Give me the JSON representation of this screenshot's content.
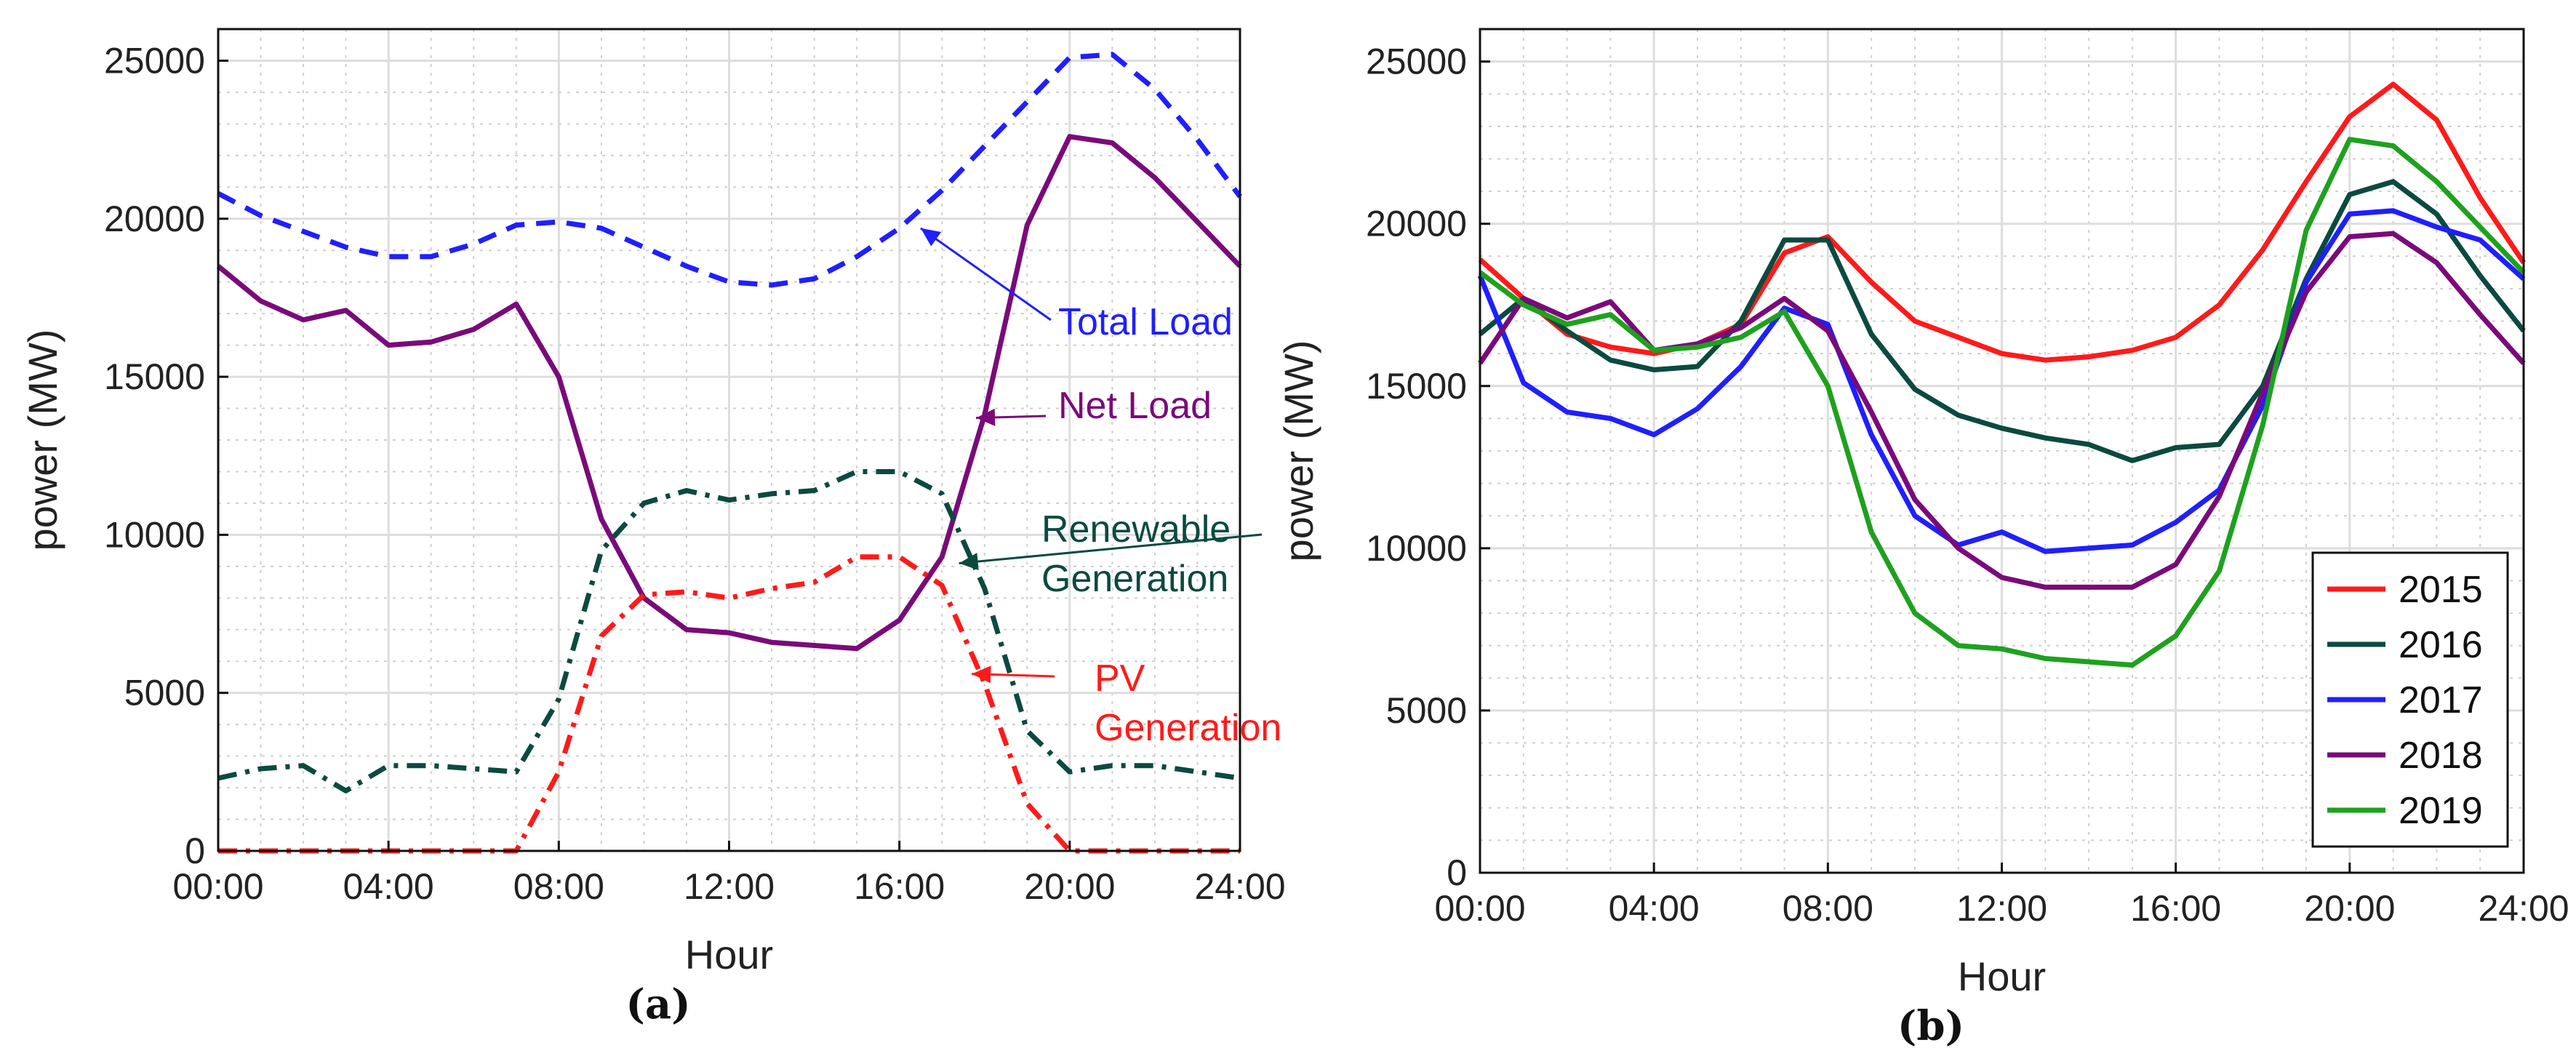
{
  "chart_data": [
    {
      "panel": "(a)",
      "type": "line",
      "xlabel": "Hour",
      "ylabel": "power (MW)",
      "xticks": [
        "00:00",
        "04:00",
        "08:00",
        "12:00",
        "16:00",
        "20:00",
        "24:00"
      ],
      "xlim": [
        0,
        24
      ],
      "ylim": [
        0,
        26000
      ],
      "yticks": [
        0,
        5000,
        10000,
        15000,
        20000,
        25000
      ],
      "grid": true,
      "x": [
        0,
        1,
        2,
        3,
        4,
        5,
        6,
        7,
        8,
        9,
        10,
        11,
        12,
        13,
        14,
        15,
        16,
        17,
        18,
        19,
        20,
        21,
        22,
        23,
        24
      ],
      "series": [
        {
          "name": "Total Load",
          "color": "#1f1fff",
          "style": "dashed",
          "values": [
            20800,
            20100,
            19600,
            19100,
            18800,
            18800,
            19200,
            19800,
            19900,
            19700,
            19100,
            18500,
            18000,
            17900,
            18100,
            18800,
            19700,
            20900,
            22300,
            23700,
            25100,
            25200,
            24100,
            22500,
            20700
          ]
        },
        {
          "name": "Net Load",
          "color": "#7a0a7a",
          "style": "solid",
          "values": [
            18500,
            17400,
            16800,
            17100,
            16000,
            16100,
            16500,
            17300,
            15000,
            10500,
            8000,
            7000,
            6900,
            6600,
            6500,
            6400,
            7300,
            9300,
            13800,
            19800,
            22600,
            22400,
            21300,
            19900,
            18500
          ]
        },
        {
          "name": "Renewable Generation",
          "color": "#0b4a3f",
          "style": "dashdot",
          "values": [
            2300,
            2600,
            2700,
            1900,
            2700,
            2700,
            2600,
            2500,
            4800,
            9500,
            11000,
            11400,
            11100,
            11300,
            11400,
            12000,
            12000,
            11300,
            8300,
            3800,
            2500,
            2700,
            2700,
            2500,
            2300
          ]
        },
        {
          "name": "PV Generation",
          "color": "#ff1a1a",
          "style": "dashdot",
          "values": [
            0,
            0,
            0,
            0,
            0,
            0,
            0,
            0,
            2500,
            6800,
            8100,
            8200,
            8000,
            8300,
            8500,
            9300,
            9300,
            8400,
            5300,
            1500,
            0,
            0,
            0,
            0,
            0
          ]
        }
      ],
      "annotations": [
        {
          "lines": [
            "Total Load"
          ],
          "color": "#1f1fff",
          "target_x": 16.5,
          "target_y": 19700
        },
        {
          "lines": [
            "Net Load"
          ],
          "color": "#7a0a7a",
          "target_x": 17.8,
          "target_y": 13700
        },
        {
          "lines": [
            "Renewable",
            "Generation"
          ],
          "color": "#0b4a3f",
          "target_x": 17.4,
          "target_y": 9100
        },
        {
          "lines": [
            "PV",
            "Generation"
          ],
          "color": "#ff1a1a",
          "target_x": 17.7,
          "target_y": 5600
        }
      ]
    },
    {
      "panel": "(b)",
      "type": "line",
      "xlabel": "Hour",
      "ylabel": "power (MW)",
      "xticks": [
        "00:00",
        "04:00",
        "08:00",
        "12:00",
        "16:00",
        "20:00",
        "24:00"
      ],
      "xlim": [
        0,
        24
      ],
      "ylim": [
        0,
        26000
      ],
      "yticks": [
        0,
        5000,
        10000,
        15000,
        20000,
        25000
      ],
      "grid": true,
      "legend": "bottom-right",
      "x": [
        0,
        1,
        2,
        3,
        4,
        5,
        6,
        7,
        8,
        9,
        10,
        11,
        12,
        13,
        14,
        15,
        16,
        17,
        18,
        19,
        20,
        21,
        22,
        23,
        24
      ],
      "series": [
        {
          "name": "2015",
          "color": "#ff1a1a",
          "values": [
            18900,
            17700,
            16600,
            16200,
            16000,
            16300,
            16900,
            19100,
            19600,
            18200,
            17000,
            16500,
            16000,
            15800,
            15900,
            16100,
            16500,
            17500,
            19200,
            21300,
            23300,
            24300,
            23200,
            20800,
            18800
          ]
        },
        {
          "name": "2016",
          "color": "#0b4a3f",
          "values": [
            16600,
            17700,
            16700,
            15800,
            15500,
            15600,
            17000,
            19500,
            19500,
            16600,
            14900,
            14100,
            13700,
            13400,
            13200,
            12700,
            13100,
            13200,
            15000,
            18300,
            20900,
            21300,
            20300,
            18400,
            16700
          ]
        },
        {
          "name": "2017",
          "color": "#1f1fff",
          "values": [
            18400,
            15100,
            14200,
            14000,
            13500,
            14300,
            15600,
            17400,
            16900,
            13500,
            11000,
            10100,
            10500,
            9900,
            10000,
            10100,
            10800,
            11800,
            14400,
            18200,
            20300,
            20400,
            19900,
            19500,
            18300
          ]
        },
        {
          "name": "2018",
          "color": "#7a0a7a",
          "values": [
            15700,
            17700,
            17100,
            17600,
            16100,
            16300,
            16800,
            17700,
            16700,
            14200,
            11500,
            10000,
            9100,
            8800,
            8800,
            8800,
            9500,
            11600,
            14800,
            17900,
            19600,
            19700,
            18800,
            17200,
            15700
          ]
        },
        {
          "name": "2019",
          "color": "#1ea11e",
          "values": [
            18500,
            17500,
            16900,
            17200,
            16100,
            16200,
            16500,
            17300,
            15000,
            10500,
            8000,
            7000,
            6900,
            6600,
            6500,
            6400,
            7300,
            9300,
            13800,
            19800,
            22600,
            22400,
            21300,
            19900,
            18500
          ]
        }
      ]
    }
  ]
}
